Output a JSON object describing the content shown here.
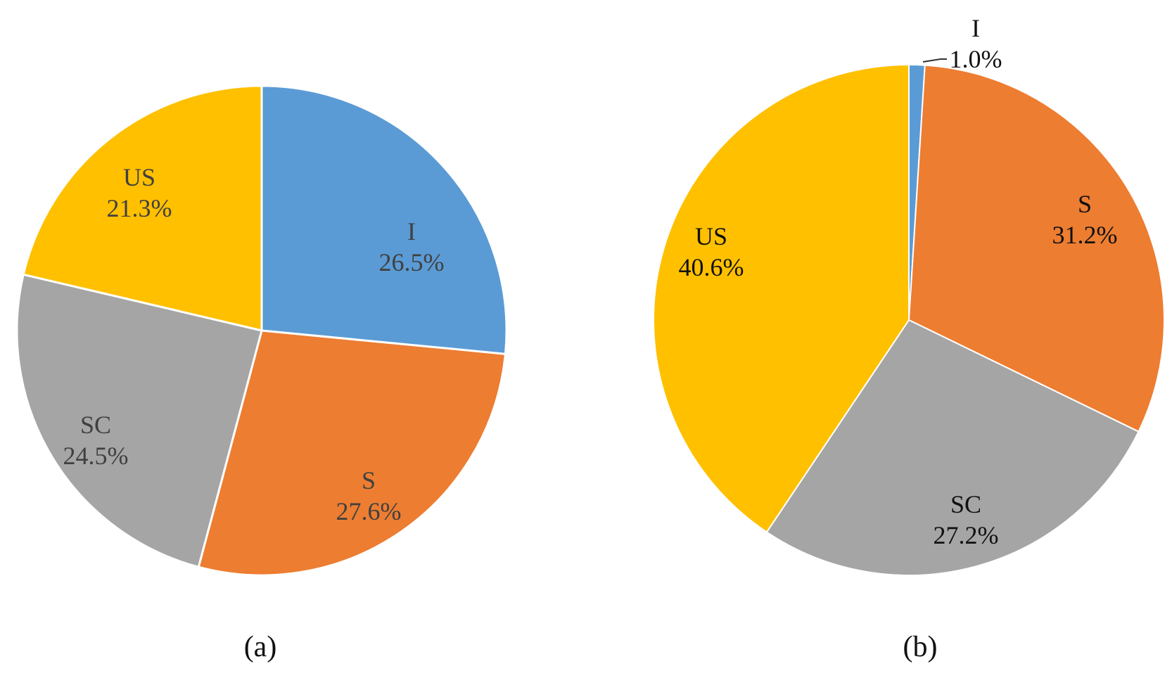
{
  "chart_data": [
    {
      "type": "pie",
      "caption": "(a)",
      "label_color": "#404040",
      "slices": [
        {
          "name": "I",
          "value": 26.5,
          "value_label": "26.5%",
          "color": "#5B9BD5"
        },
        {
          "name": "S",
          "value": 27.6,
          "value_label": "27.6%",
          "color": "#ED7D31"
        },
        {
          "name": "SC",
          "value": 24.5,
          "value_label": "24.5%",
          "color": "#A5A5A5"
        },
        {
          "name": "US",
          "value": 21.3,
          "value_label": "21.3%",
          "color": "#FFC000"
        }
      ]
    },
    {
      "type": "pie",
      "caption": "(b)",
      "label_color": "#111111",
      "slices": [
        {
          "name": "I",
          "value": 1.0,
          "value_label": "1.0%",
          "color": "#5B9BD5"
        },
        {
          "name": "S",
          "value": 31.2,
          "value_label": "31.2%",
          "color": "#ED7D31"
        },
        {
          "name": "SC",
          "value": 27.2,
          "value_label": "27.2%",
          "color": "#A5A5A5"
        },
        {
          "name": "US",
          "value": 40.6,
          "value_label": "40.6%",
          "color": "#FFC000"
        }
      ]
    }
  ]
}
